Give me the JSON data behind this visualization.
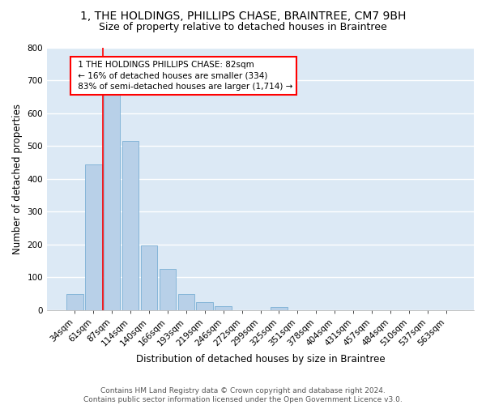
{
  "title_line1": "1, THE HOLDINGS, PHILLIPS CHASE, BRAINTREE, CM7 9BH",
  "title_line2": "Size of property relative to detached houses in Braintree",
  "xlabel": "Distribution of detached houses by size in Braintree",
  "ylabel": "Number of detached properties",
  "bar_color": "#b8d0e8",
  "bar_edge_color": "#7aafd4",
  "bg_color": "#dce9f5",
  "grid_color": "white",
  "categories": [
    "34sqm",
    "61sqm",
    "87sqm",
    "114sqm",
    "140sqm",
    "166sqm",
    "193sqm",
    "219sqm",
    "246sqm",
    "272sqm",
    "299sqm",
    "325sqm",
    "351sqm",
    "378sqm",
    "404sqm",
    "431sqm",
    "457sqm",
    "484sqm",
    "510sqm",
    "537sqm",
    "563sqm"
  ],
  "values": [
    48,
    443,
    662,
    516,
    197,
    125,
    48,
    24,
    11,
    0,
    0,
    10,
    0,
    0,
    0,
    0,
    0,
    0,
    0,
    0,
    0
  ],
  "ylim": [
    0,
    800
  ],
  "yticks": [
    0,
    100,
    200,
    300,
    400,
    500,
    600,
    700,
    800
  ],
  "property_label": "1 THE HOLDINGS PHILLIPS CHASE: 82sqm",
  "pct_smaller": "16% of detached houses are smaller (334)",
  "pct_larger": "83% of semi-detached houses are larger (1,714)",
  "vline_x_index": 2.0,
  "footer_line1": "Contains HM Land Registry data © Crown copyright and database right 2024.",
  "footer_line2": "Contains public sector information licensed under the Open Government Licence v3.0.",
  "title_fontsize": 10,
  "subtitle_fontsize": 9,
  "label_fontsize": 8.5,
  "tick_fontsize": 7.5,
  "annotation_fontsize": 7.5,
  "footer_fontsize": 6.5
}
